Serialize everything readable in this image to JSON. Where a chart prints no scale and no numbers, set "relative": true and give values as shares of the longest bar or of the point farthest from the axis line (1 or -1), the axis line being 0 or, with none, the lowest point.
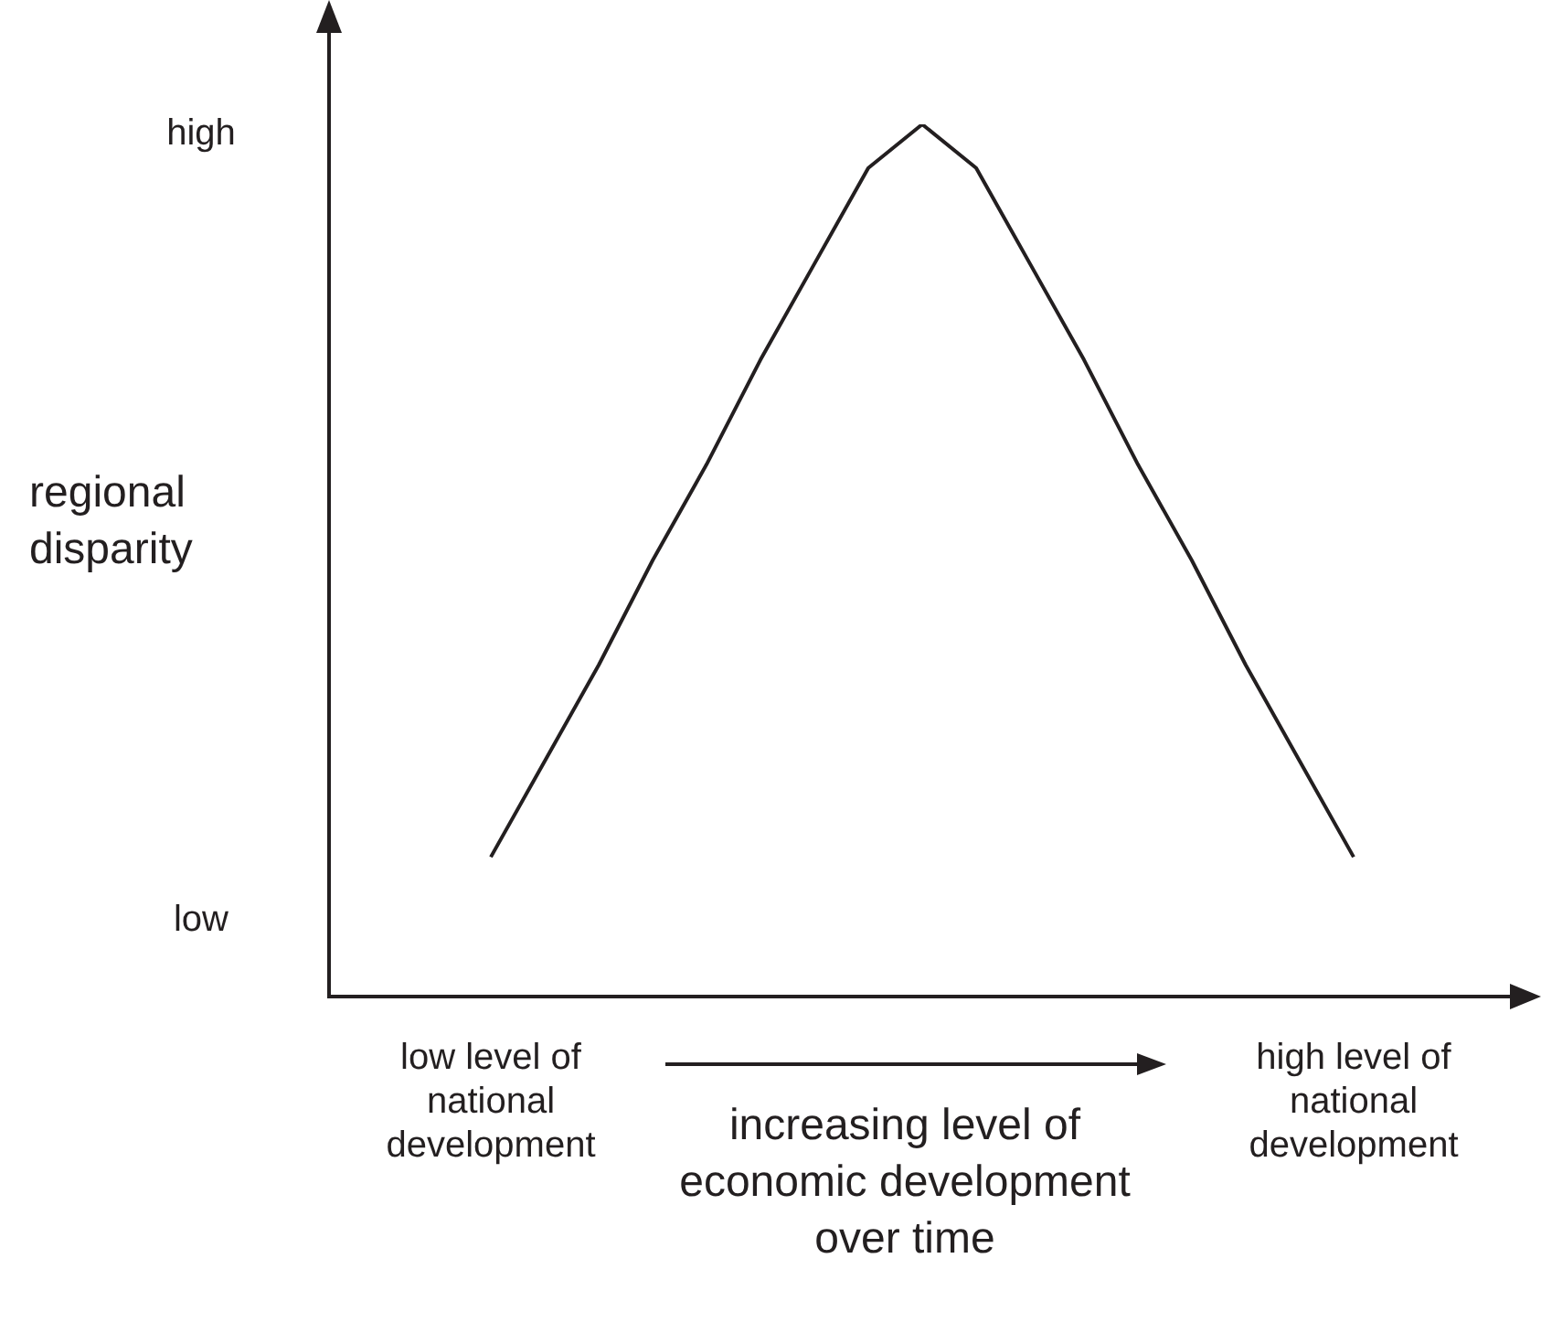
{
  "chart_data": {
    "type": "line",
    "relative": true,
    "marker": "none",
    "xlabel": "increasing level of economic development over time",
    "ylabel": "regional disparity",
    "categories": [
      null,
      null,
      null,
      "low level of national development",
      null,
      null,
      null,
      null,
      null,
      null,
      null,
      null,
      null,
      null,
      null,
      null,
      null,
      null,
      null,
      "high level of national development",
      null,
      null,
      null
    ],
    "series": [
      {
        "color": "#231f20",
        "values": [
          null,
          null,
          null,
          0.16,
          0.27,
          0.38,
          0.5,
          0.61,
          0.73,
          0.84,
          0.95,
          1,
          0.95,
          0.84,
          0.73,
          0.61,
          0.5,
          0.38,
          0.27,
          0.16,
          null,
          null,
          null
        ]
      }
    ],
    "annotations": [
      "high",
      "low"
    ]
  }
}
